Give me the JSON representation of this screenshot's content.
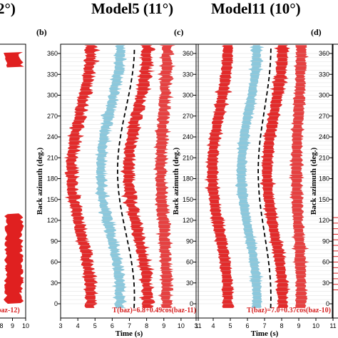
{
  "titles": {
    "left_cut": "2°)",
    "model5": "Model5 (11°)",
    "model11": "Model11 (10°)"
  },
  "panel_labels": {
    "b": "(b)",
    "c": "(c)",
    "d": "(d)"
  },
  "axes": {
    "ylabel": "Back azimuth (deg.)",
    "xlabel": "Time (s)",
    "yticks": [
      0,
      30,
      60,
      90,
      120,
      150,
      180,
      210,
      240,
      270,
      300,
      330,
      360
    ],
    "xticks_panel_a": [
      8,
      9,
      10
    ],
    "xticks_panel_b": [
      3,
      4,
      5,
      6,
      7,
      8,
      9,
      10,
      11
    ],
    "xticks_panel_c": [
      3,
      4,
      5,
      6,
      7,
      8,
      9,
      10,
      11
    ]
  },
  "formulas": {
    "a": "baz-12)",
    "b": "T(baz)=6.8+0.49cos(baz-11)",
    "c": "T(baz)=7.0+0.37cos(baz-10)"
  },
  "chart_data": [
    {
      "type": "line",
      "panel": "b",
      "title": "Model5 (11°)",
      "xlabel": "Time (s)",
      "ylabel": "Back azimuth (deg.)",
      "xlim": [
        3,
        11
      ],
      "ylim": [
        0,
        370
      ],
      "fit": {
        "t0": 6.8,
        "amp": 0.49,
        "phase_deg": 11
      },
      "bands": [
        {
          "color": "#e02020",
          "center_s": 4.2,
          "polarity": "positive"
        },
        {
          "color": "#86c5da",
          "center_s": 5.9,
          "polarity": "negative"
        },
        {
          "color": "#e02020",
          "center_s": 7.5,
          "polarity": "positive"
        },
        {
          "color": "#e02020",
          "center_s": 9.0,
          "polarity": "positive"
        }
      ]
    },
    {
      "type": "line",
      "panel": "c",
      "title": "Model11 (10°)",
      "xlabel": "Time (s)",
      "ylabel": "Back azimuth (deg.)",
      "xlim": [
        3,
        11
      ],
      "ylim": [
        0,
        370
      ],
      "fit": {
        "t0": 7.0,
        "amp": 0.37,
        "phase_deg": 10
      },
      "bands": [
        {
          "color": "#e02020",
          "center_s": 4.4,
          "polarity": "positive"
        },
        {
          "color": "#86c5da",
          "center_s": 6.1,
          "polarity": "negative"
        },
        {
          "color": "#e02020",
          "center_s": 7.6,
          "polarity": "positive"
        },
        {
          "color": "#e02020",
          "center_s": 9.0,
          "polarity": "positive"
        }
      ]
    }
  ],
  "colors": {
    "positive": "#e02020",
    "negative": "#86c5da",
    "fit_line": "#000000",
    "formula": "#d62020"
  }
}
